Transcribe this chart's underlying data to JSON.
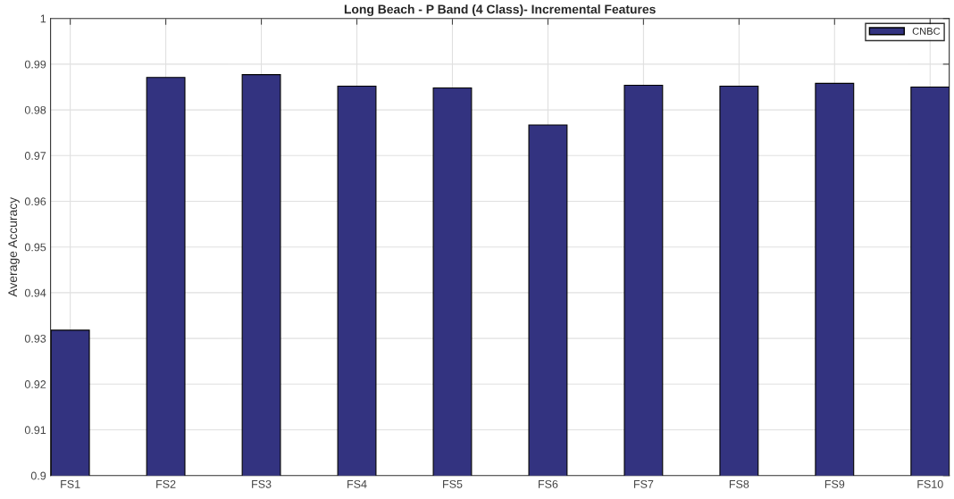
{
  "chart_data": {
    "type": "bar",
    "title": "Long Beach - P Band (4 Class)- Incremental Features",
    "ylabel": "Average Accuracy",
    "categories": [
      "FS1",
      "FS2",
      "FS3",
      "FS4",
      "FS5",
      "FS6",
      "FS7",
      "FS8",
      "FS9",
      "FS10"
    ],
    "series": [
      {
        "name": "CNBC",
        "color": "#333380",
        "values": [
          0.9318,
          0.9871,
          0.9877,
          0.9852,
          0.9848,
          0.9767,
          0.9854,
          0.9852,
          0.9858,
          0.985
        ]
      }
    ],
    "ylim": [
      0.9,
      1
    ],
    "yticks": [
      0.9,
      0.91,
      0.92,
      0.93,
      0.94,
      0.95,
      0.96,
      0.97,
      0.98,
      0.99,
      1
    ],
    "grid": true,
    "legend": "top right"
  }
}
